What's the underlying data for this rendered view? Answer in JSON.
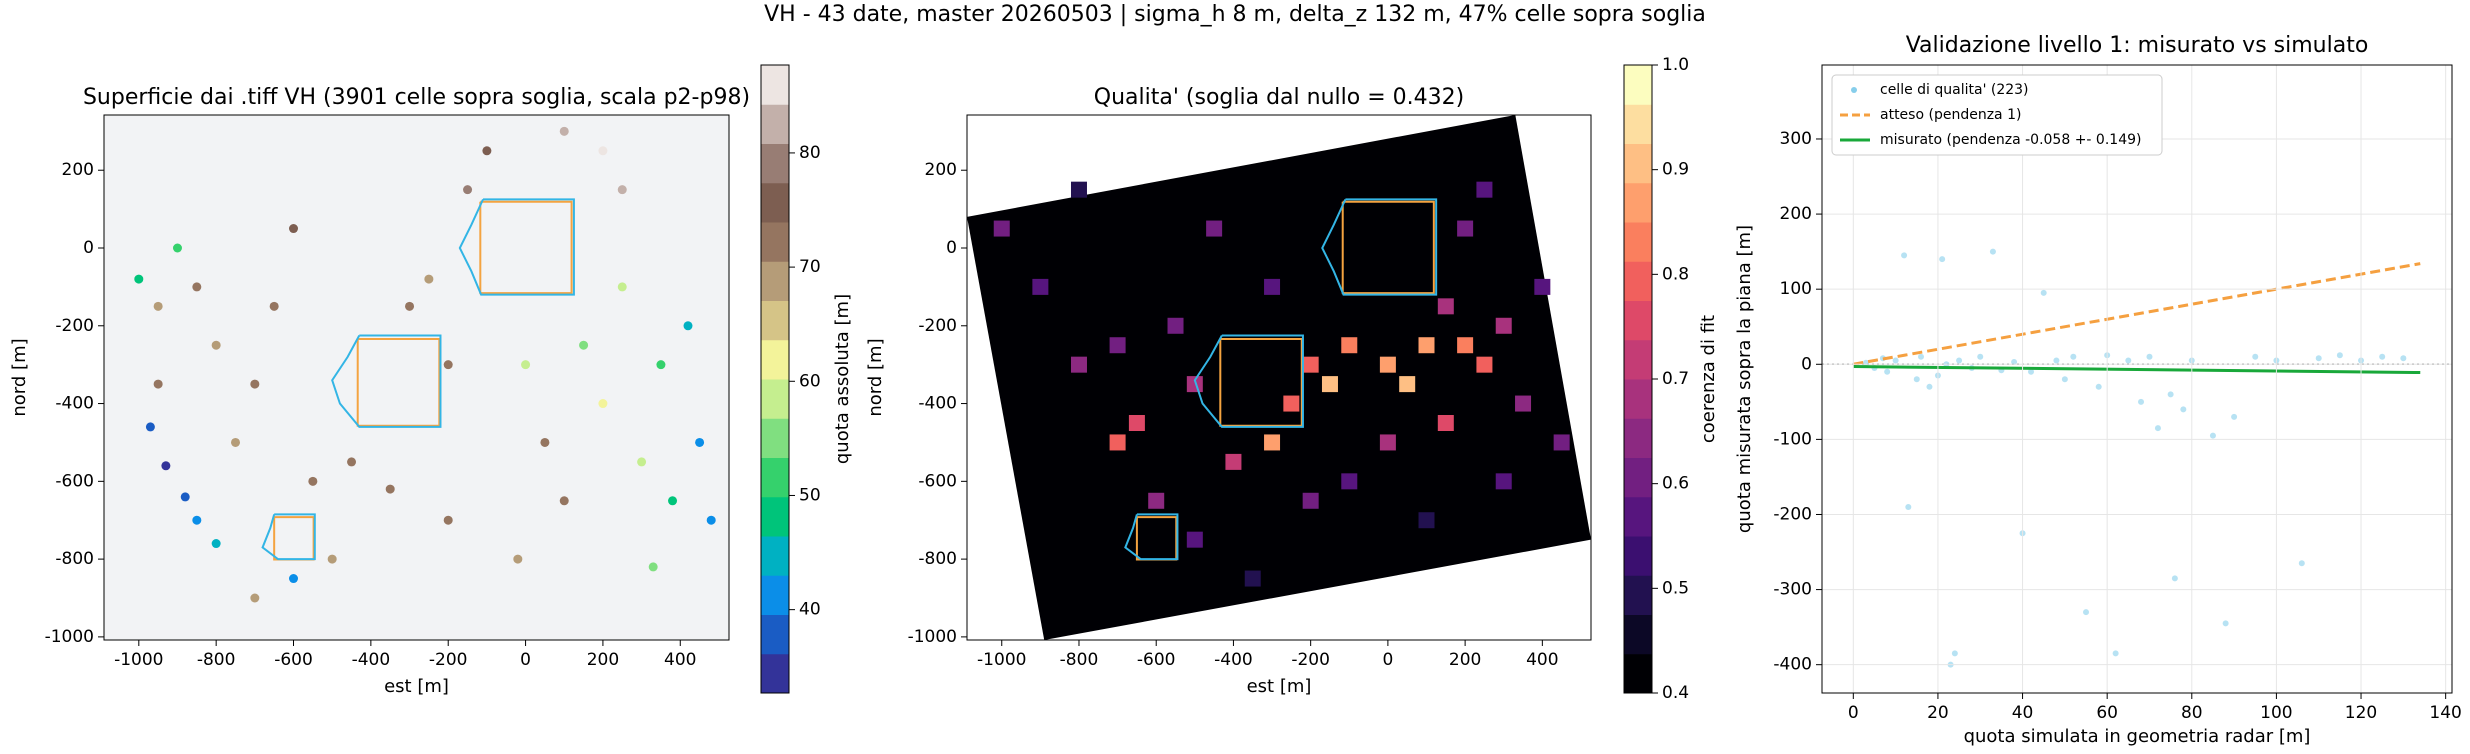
{
  "title": "VH - 43 date, master 20260503 | sigma_h 8 m, delta_z 132 m, 47% celle sopra soglia",
  "chart_data": [
    {
      "type": "map-scatter",
      "title": "Superficie dai .tiff VH (3901 celle sopra soglia, scala p2-p98)",
      "xlabel": "est [m]",
      "ylabel": "nord [m]",
      "xlim": [
        -1090,
        526
      ],
      "ylim": [
        -1008,
        342
      ],
      "xticks": [
        -1000,
        -800,
        -600,
        -400,
        -200,
        0,
        200,
        400
      ],
      "yticks": [
        -1000,
        -800,
        -600,
        -400,
        -200,
        0,
        200
      ],
      "background": "#f2f3f5",
      "series": [
        {
          "x": [
            -1000,
            -950,
            -900,
            -850,
            -800,
            -950,
            -970,
            -930,
            -880,
            -850,
            -800,
            -750,
            -700,
            -650,
            -600,
            -550,
            -500,
            -450,
            -350,
            -300,
            -250,
            -200,
            -150,
            -100,
            0,
            50,
            100,
            150,
            200,
            250,
            250,
            300,
            350,
            380,
            420,
            450,
            480,
            200,
            100,
            -20,
            -200,
            -600,
            -700,
            330
          ],
          "y": [
            -80,
            -150,
            0,
            -100,
            -250,
            -350,
            -460,
            -560,
            -640,
            -700,
            -760,
            -500,
            -350,
            -150,
            50,
            -600,
            -800,
            -550,
            -620,
            -150,
            -80,
            -300,
            150,
            250,
            -300,
            -500,
            -650,
            -250,
            -400,
            -100,
            150,
            -550,
            -300,
            -650,
            -200,
            -500,
            -700,
            250,
            300,
            -800,
            -700,
            -850,
            -900,
            -820
          ],
          "values": [
            48,
            70,
            52,
            72,
            68,
            72,
            38,
            36,
            37,
            41,
            45,
            70,
            72,
            72,
            74,
            72,
            70,
            71,
            73,
            72,
            70,
            73,
            80,
            76,
            60,
            72,
            72,
            55,
            62,
            58,
            84,
            60,
            53,
            48,
            45,
            42,
            40,
            86,
            82,
            70,
            71,
            40,
            70,
            55
          ]
        }
      ],
      "regions": [
        {
          "color": "#f4a340",
          "x": [
            -117,
            119,
            119,
            -117,
            -117
          ],
          "y": [
            119,
            119,
            -116,
            -116,
            119
          ]
        },
        {
          "color": "#f4a340",
          "x": [
            -434,
            -223,
            -223,
            -434,
            -434
          ],
          "y": [
            -234,
            -234,
            -457,
            -457,
            -234
          ]
        },
        {
          "color": "#f4a340",
          "x": [
            -650,
            -548,
            -548,
            -650,
            -650
          ],
          "y": [
            -692,
            -692,
            -801,
            -801,
            -692
          ]
        },
        {
          "color": "#33b5e5",
          "x": [
            -110,
            125,
            125,
            -115,
            -140,
            -170,
            -140,
            -110
          ],
          "y": [
            125,
            125,
            -120,
            -120,
            -60,
            0,
            60,
            125
          ]
        },
        {
          "color": "#33b5e5",
          "x": [
            -430,
            -220,
            -220,
            -430,
            -480,
            -500,
            -460,
            -430
          ],
          "y": [
            -225,
            -225,
            -460,
            -460,
            -400,
            -340,
            -280,
            -225
          ]
        },
        {
          "color": "#33b5e5",
          "x": [
            -650,
            -545,
            -545,
            -640,
            -680,
            -660,
            -650
          ],
          "y": [
            -685,
            -685,
            -800,
            -800,
            -770,
            -720,
            -685
          ]
        }
      ],
      "colorbar": {
        "label": "quota assoluta [m]",
        "lim": [
          32.7,
          87.7
        ],
        "ticks": [
          40,
          50,
          60,
          70,
          80
        ],
        "colors": [
          "#333399",
          "#1a5cc4",
          "#0b8ee8",
          "#00b1c2",
          "#00c47a",
          "#35d16c",
          "#80df80",
          "#c5ee8f",
          "#f3f39a",
          "#d5c487",
          "#b59c78",
          "#957560",
          "#7d5e51",
          "#987d74",
          "#c3b0aa",
          "#ede5e2"
        ]
      }
    },
    {
      "type": "map-heat",
      "title": "Qualita' (soglia dal nullo = 0.432)",
      "xlabel": "est [m]",
      "ylabel": "nord [m]",
      "xlim": [
        -1090,
        526
      ],
      "ylim": [
        -1008,
        342
      ],
      "xticks": [
        -1000,
        -800,
        -600,
        -400,
        -200,
        0,
        200,
        400
      ],
      "yticks": [
        -1000,
        -800,
        -600,
        -400,
        -200,
        0,
        200
      ],
      "background": "#ffffff",
      "footprint": {
        "x": [
          -1090,
          330,
          526,
          -890
        ],
        "y": [
          80,
          342,
          -750,
          -1008
        ]
      },
      "series": [
        {
          "x": [
            -1000,
            -900,
            -800,
            -700,
            -650,
            -550,
            -500,
            -400,
            -300,
            -250,
            -200,
            -150,
            -100,
            0,
            50,
            100,
            150,
            200,
            250,
            300,
            350,
            400,
            450,
            -300,
            -450,
            -800,
            200,
            250,
            -200,
            -500,
            -100,
            100,
            300,
            -350,
            0,
            -600,
            -700,
            150
          ],
          "y": [
            50,
            -100,
            -300,
            -500,
            -450,
            -200,
            -350,
            -550,
            -500,
            -400,
            -300,
            -350,
            -250,
            -300,
            -350,
            -250,
            -450,
            -250,
            -300,
            -200,
            -400,
            -100,
            -500,
            -100,
            50,
            150,
            50,
            150,
            -650,
            -750,
            -600,
            -700,
            -600,
            -850,
            -500,
            -650,
            -250,
            -150
          ],
          "values": [
            0.6,
            0.55,
            0.65,
            0.8,
            0.75,
            0.6,
            0.7,
            0.72,
            0.85,
            0.8,
            0.78,
            0.9,
            0.83,
            0.88,
            0.92,
            0.85,
            0.75,
            0.82,
            0.8,
            0.7,
            0.65,
            0.55,
            0.6,
            0.55,
            0.6,
            0.5,
            0.6,
            0.55,
            0.6,
            0.55,
            0.58,
            0.5,
            0.55,
            0.5,
            0.7,
            0.65,
            0.62,
            0.68
          ]
        }
      ],
      "regions": [
        {
          "color": "#f4a340",
          "x": [
            -117,
            119,
            119,
            -117,
            -117
          ],
          "y": [
            119,
            119,
            -116,
            -116,
            119
          ]
        },
        {
          "color": "#f4a340",
          "x": [
            -434,
            -223,
            -223,
            -434,
            -434
          ],
          "y": [
            -234,
            -234,
            -457,
            -457,
            -234
          ]
        },
        {
          "color": "#f4a340",
          "x": [
            -650,
            -548,
            -548,
            -650,
            -650
          ],
          "y": [
            -692,
            -692,
            -801,
            -801,
            -692
          ]
        },
        {
          "color": "#33b5e5",
          "x": [
            -110,
            125,
            125,
            -115,
            -140,
            -170,
            -140,
            -110
          ],
          "y": [
            125,
            125,
            -120,
            -120,
            -60,
            0,
            60,
            125
          ]
        },
        {
          "color": "#33b5e5",
          "x": [
            -430,
            -220,
            -220,
            -430,
            -480,
            -500,
            -460,
            -430
          ],
          "y": [
            -225,
            -225,
            -460,
            -460,
            -400,
            -340,
            -280,
            -225
          ]
        },
        {
          "color": "#33b5e5",
          "x": [
            -650,
            -545,
            -545,
            -640,
            -680,
            -660,
            -650
          ],
          "y": [
            -685,
            -685,
            -800,
            -800,
            -770,
            -720,
            -685
          ]
        }
      ],
      "colorbar": {
        "label": "coerenza di fit",
        "lim": [
          0.4,
          1
        ],
        "ticks": [
          0.4,
          0.5,
          0.6,
          0.7,
          0.8,
          0.9,
          {
            "value": 1,
            "label": "1.0"
          }
        ],
        "colors": [
          "#000004",
          "#0c0826",
          "#221150",
          "#3b0f70",
          "#57157e",
          "#721f81",
          "#8c2981",
          "#a8327d",
          "#c43c75",
          "#de4968",
          "#f1605d",
          "#fa7f5e",
          "#fe9f6d",
          "#febf84",
          "#fddea0",
          "#fcfdbf"
        ]
      }
    },
    {
      "type": "scatter-line",
      "title": "Validazione livello 1: misurato vs simulato",
      "xlabel": "quota simulata in geometria radar [m]",
      "ylabel": "quota misurata sopra la piana [m]",
      "xlim": [
        -7.4,
        141.5
      ],
      "ylim": [
        -437.7,
        398.5
      ],
      "xticks": [
        0,
        20,
        40,
        60,
        80,
        100,
        120,
        140
      ],
      "yticks": [
        -400,
        -300,
        -200,
        -100,
        0,
        100,
        200,
        300
      ],
      "grid": true,
      "hline": 0,
      "legend": "upper left",
      "series": [
        {
          "name": "celle di qualita' (223)",
          "kind": "points",
          "color": "#87ceeb",
          "x": [
            3,
            5,
            7,
            8,
            10,
            12,
            13,
            15,
            16,
            18,
            20,
            21,
            22,
            25,
            28,
            30,
            33,
            35,
            38,
            40,
            42,
            45,
            48,
            50,
            52,
            55,
            58,
            60,
            62,
            65,
            68,
            70,
            72,
            75,
            76,
            78,
            80,
            85,
            88,
            90,
            95,
            100,
            106,
            110,
            115,
            120,
            125,
            130,
            23,
            24
          ],
          "values": [
            2,
            -5,
            8,
            -10,
            5,
            145,
            -190,
            -20,
            10,
            -30,
            -15,
            140,
            0,
            5,
            -5,
            10,
            150,
            -8,
            3,
            -225,
            -10,
            95,
            5,
            -20,
            10,
            -330,
            -30,
            12,
            -385,
            5,
            -50,
            10,
            -85,
            -40,
            -285,
            -60,
            5,
            -95,
            -345,
            -70,
            10,
            5,
            -265,
            8,
            12,
            5,
            10,
            8,
            -400,
            -385
          ]
        },
        {
          "name": "atteso (pendenza 1)",
          "kind": "dashed",
          "color": "#f5a040",
          "x": [
            0,
            134
          ],
          "values": [
            0,
            134
          ]
        },
        {
          "name": "misurato (pendenza -0.058 +- 0.149)",
          "kind": "line",
          "color": "#19a83a",
          "x": [
            0,
            134
          ],
          "values": [
            -3,
            -11
          ]
        }
      ]
    }
  ]
}
